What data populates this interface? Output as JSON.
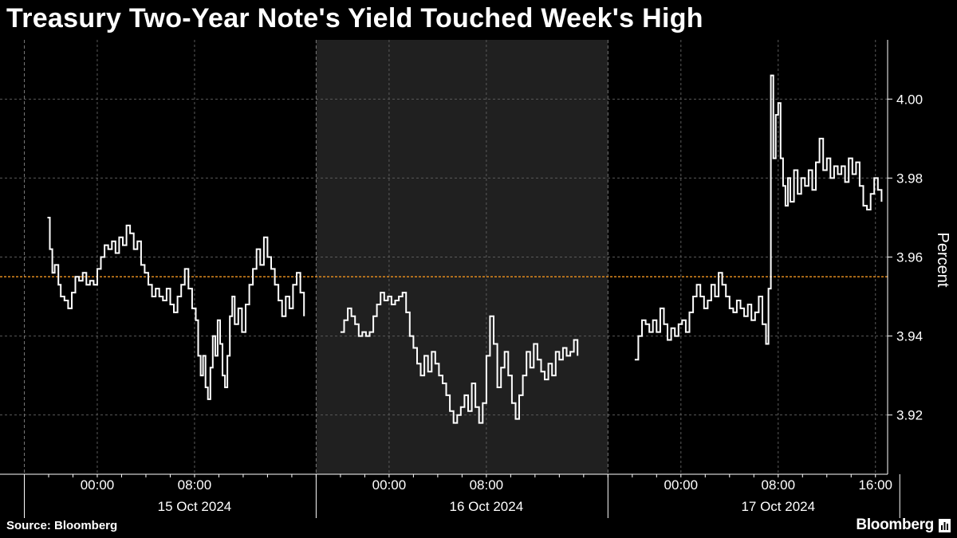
{
  "title": "Treasury Two-Year Note's Yield Touched Week's High",
  "source": "Source: Bloomberg",
  "brand": "Bloomberg",
  "colors": {
    "background": "#000000",
    "line": "#ffffff",
    "grid": "#5a5a5a",
    "shade": "#202020",
    "reference": "#e08a1e"
  },
  "chart_data": {
    "type": "line",
    "title": "Treasury Two-Year Note's Yield Touched Week's High",
    "ylabel": "Percent",
    "ylim": [
      3.905,
      4.015
    ],
    "yticks": [
      3.92,
      3.94,
      3.96,
      3.98,
      4.0
    ],
    "ytick_labels": [
      "3.92",
      "3.94",
      "3.96",
      "3.98",
      "4.00"
    ],
    "y_axis_position": "right",
    "x_unit": "hours since 15 Oct 2024 00:00",
    "xlim": [
      -8,
      65
    ],
    "xticks": [
      0,
      8,
      24,
      32,
      48,
      56,
      64
    ],
    "xtick_labels": [
      "00:00",
      "08:00",
      "00:00",
      "08:00",
      "00:00",
      "08:00",
      "16:00"
    ],
    "day_labels": [
      {
        "x": 8,
        "label": "15 Oct 2024"
      },
      {
        "x": 32,
        "label": "16 Oct 2024"
      },
      {
        "x": 56,
        "label": "17 Oct 2024"
      }
    ],
    "day_boundaries": [
      -6,
      18,
      42
    ],
    "shaded_range": [
      18,
      42
    ],
    "reference_line": 3.955,
    "grid": true,
    "series": [
      {
        "points": [
          [
            -4.1,
            3.97
          ],
          [
            -3.9,
            3.962
          ],
          [
            -3.7,
            3.956
          ],
          [
            -3.5,
            3.958
          ],
          [
            -3.2,
            3.953
          ],
          [
            -3.0,
            3.95
          ],
          [
            -2.7,
            3.949
          ],
          [
            -2.4,
            3.947
          ],
          [
            -2.1,
            3.951
          ],
          [
            -1.8,
            3.955
          ],
          [
            -1.5,
            3.954
          ],
          [
            -1.2,
            3.956
          ],
          [
            -0.9,
            3.953
          ],
          [
            -0.6,
            3.954
          ],
          [
            -0.3,
            3.953
          ],
          [
            0.0,
            3.957
          ],
          [
            0.3,
            3.96
          ],
          [
            0.6,
            3.963
          ],
          [
            0.9,
            3.962
          ],
          [
            1.2,
            3.964
          ],
          [
            1.5,
            3.961
          ],
          [
            1.8,
            3.965
          ],
          [
            2.1,
            3.963
          ],
          [
            2.4,
            3.968
          ],
          [
            2.7,
            3.966
          ],
          [
            3.0,
            3.962
          ],
          [
            3.3,
            3.964
          ],
          [
            3.6,
            3.958
          ],
          [
            3.9,
            3.956
          ],
          [
            4.2,
            3.953
          ],
          [
            4.5,
            3.95
          ],
          [
            4.8,
            3.952
          ],
          [
            5.1,
            3.95
          ],
          [
            5.4,
            3.949
          ],
          [
            5.7,
            3.952
          ],
          [
            6.0,
            3.948
          ],
          [
            6.3,
            3.946
          ],
          [
            6.6,
            3.95
          ],
          [
            6.9,
            3.953
          ],
          [
            7.2,
            3.957
          ],
          [
            7.5,
            3.952
          ],
          [
            7.8,
            3.947
          ],
          [
            8.1,
            3.944
          ],
          [
            8.3,
            3.935
          ],
          [
            8.5,
            3.93
          ],
          [
            8.7,
            3.935
          ],
          [
            8.9,
            3.927
          ],
          [
            9.1,
            3.924
          ],
          [
            9.3,
            3.932
          ],
          [
            9.5,
            3.94
          ],
          [
            9.7,
            3.935
          ],
          [
            9.9,
            3.944
          ],
          [
            10.1,
            3.938
          ],
          [
            10.3,
            3.93
          ],
          [
            10.5,
            3.927
          ],
          [
            10.7,
            3.935
          ],
          [
            10.9,
            3.945
          ],
          [
            11.1,
            3.95
          ],
          [
            11.3,
            3.943
          ],
          [
            11.6,
            3.947
          ],
          [
            11.9,
            3.941
          ],
          [
            12.2,
            3.948
          ],
          [
            12.5,
            3.953
          ],
          [
            12.8,
            3.957
          ],
          [
            13.1,
            3.962
          ],
          [
            13.4,
            3.958
          ],
          [
            13.7,
            3.965
          ],
          [
            14.0,
            3.96
          ],
          [
            14.3,
            3.957
          ],
          [
            14.6,
            3.953
          ],
          [
            14.9,
            3.949
          ],
          [
            15.2,
            3.945
          ],
          [
            15.5,
            3.95
          ],
          [
            15.8,
            3.947
          ],
          [
            16.1,
            3.953
          ],
          [
            16.4,
            3.956
          ],
          [
            16.7,
            3.951
          ],
          [
            17.0,
            3.945
          ],
          [
            null,
            null
          ],
          [
            20.0,
            3.941
          ],
          [
            20.3,
            3.944
          ],
          [
            20.6,
            3.947
          ],
          [
            20.9,
            3.945
          ],
          [
            21.2,
            3.943
          ],
          [
            21.5,
            3.94
          ],
          [
            21.8,
            3.941
          ],
          [
            22.1,
            3.94
          ],
          [
            22.4,
            3.941
          ],
          [
            22.7,
            3.945
          ],
          [
            23.0,
            3.948
          ],
          [
            23.3,
            3.951
          ],
          [
            23.6,
            3.949
          ],
          [
            23.9,
            3.95
          ],
          [
            24.2,
            3.948
          ],
          [
            24.5,
            3.949
          ],
          [
            24.8,
            3.95
          ],
          [
            25.1,
            3.951
          ],
          [
            25.4,
            3.946
          ],
          [
            25.7,
            3.94
          ],
          [
            26.0,
            3.937
          ],
          [
            26.3,
            3.933
          ],
          [
            26.6,
            3.93
          ],
          [
            26.9,
            3.935
          ],
          [
            27.2,
            3.931
          ],
          [
            27.5,
            3.936
          ],
          [
            27.8,
            3.933
          ],
          [
            28.1,
            3.93
          ],
          [
            28.4,
            3.928
          ],
          [
            28.7,
            3.925
          ],
          [
            29.0,
            3.921
          ],
          [
            29.3,
            3.918
          ],
          [
            29.6,
            3.92
          ],
          [
            29.9,
            3.922
          ],
          [
            30.2,
            3.925
          ],
          [
            30.5,
            3.921
          ],
          [
            30.8,
            3.928
          ],
          [
            31.1,
            3.922
          ],
          [
            31.4,
            3.918
          ],
          [
            31.7,
            3.923
          ],
          [
            32.0,
            3.935
          ],
          [
            32.3,
            3.945
          ],
          [
            32.6,
            3.938
          ],
          [
            32.9,
            3.927
          ],
          [
            33.2,
            3.932
          ],
          [
            33.5,
            3.936
          ],
          [
            33.8,
            3.93
          ],
          [
            34.1,
            3.923
          ],
          [
            34.4,
            3.919
          ],
          [
            34.7,
            3.925
          ],
          [
            35.0,
            3.93
          ],
          [
            35.3,
            3.936
          ],
          [
            35.6,
            3.932
          ],
          [
            35.9,
            3.938
          ],
          [
            36.2,
            3.934
          ],
          [
            36.5,
            3.931
          ],
          [
            36.8,
            3.929
          ],
          [
            37.1,
            3.933
          ],
          [
            37.4,
            3.93
          ],
          [
            37.7,
            3.936
          ],
          [
            38.0,
            3.934
          ],
          [
            38.3,
            3.937
          ],
          [
            38.6,
            3.935
          ],
          [
            38.9,
            3.936
          ],
          [
            39.2,
            3.939
          ],
          [
            39.5,
            3.935
          ],
          [
            null,
            null
          ],
          [
            44.2,
            3.934
          ],
          [
            44.5,
            3.94
          ],
          [
            44.8,
            3.944
          ],
          [
            45.1,
            3.943
          ],
          [
            45.4,
            3.941
          ],
          [
            45.7,
            3.944
          ],
          [
            46.0,
            3.941
          ],
          [
            46.3,
            3.947
          ],
          [
            46.6,
            3.943
          ],
          [
            46.9,
            3.939
          ],
          [
            47.2,
            3.942
          ],
          [
            47.5,
            3.94
          ],
          [
            47.8,
            3.943
          ],
          [
            48.1,
            3.944
          ],
          [
            48.4,
            3.941
          ],
          [
            48.7,
            3.946
          ],
          [
            49.0,
            3.95
          ],
          [
            49.3,
            3.953
          ],
          [
            49.6,
            3.95
          ],
          [
            49.9,
            3.947
          ],
          [
            50.2,
            3.949
          ],
          [
            50.5,
            3.953
          ],
          [
            50.8,
            3.95
          ],
          [
            51.1,
            3.956
          ],
          [
            51.4,
            3.953
          ],
          [
            51.7,
            3.95
          ],
          [
            52.0,
            3.947
          ],
          [
            52.3,
            3.946
          ],
          [
            52.6,
            3.949
          ],
          [
            52.9,
            3.947
          ],
          [
            53.2,
            3.945
          ],
          [
            53.5,
            3.948
          ],
          [
            53.8,
            3.944
          ],
          [
            54.1,
            3.946
          ],
          [
            54.4,
            3.95
          ],
          [
            54.7,
            3.943
          ],
          [
            55.0,
            3.938
          ],
          [
            55.2,
            3.952
          ],
          [
            55.4,
            4.006
          ],
          [
            55.6,
            3.985
          ],
          [
            55.8,
            3.996
          ],
          [
            56.0,
            3.999
          ],
          [
            56.2,
            3.985
          ],
          [
            56.4,
            3.978
          ],
          [
            56.6,
            3.973
          ],
          [
            56.8,
            3.98
          ],
          [
            57.0,
            3.974
          ],
          [
            57.3,
            3.982
          ],
          [
            57.6,
            3.976
          ],
          [
            57.9,
            3.98
          ],
          [
            58.2,
            3.978
          ],
          [
            58.5,
            3.982
          ],
          [
            58.8,
            3.977
          ],
          [
            59.1,
            3.984
          ],
          [
            59.4,
            3.99
          ],
          [
            59.7,
            3.982
          ],
          [
            60.0,
            3.985
          ],
          [
            60.3,
            3.98
          ],
          [
            60.6,
            3.983
          ],
          [
            60.9,
            3.981
          ],
          [
            61.2,
            3.983
          ],
          [
            61.5,
            3.979
          ],
          [
            61.8,
            3.985
          ],
          [
            62.1,
            3.981
          ],
          [
            62.4,
            3.984
          ],
          [
            62.7,
            3.978
          ],
          [
            63.0,
            3.973
          ],
          [
            63.3,
            3.972
          ],
          [
            63.6,
            3.976
          ],
          [
            63.9,
            3.98
          ],
          [
            64.2,
            3.977
          ],
          [
            64.5,
            3.974
          ]
        ]
      }
    ]
  }
}
